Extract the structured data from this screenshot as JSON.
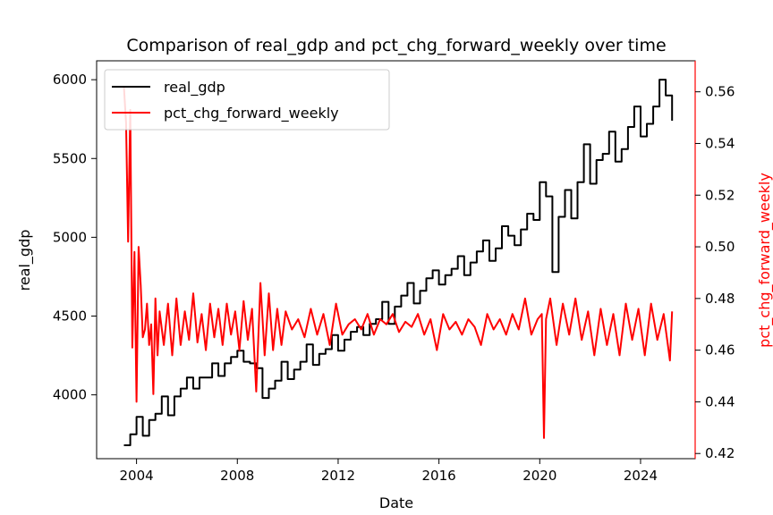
{
  "chart_data": {
    "type": "line",
    "title": "Comparison of real_gdp and pct_chg_forward_weekly over time",
    "xlabel": "Date",
    "ylabel": "real_gdp",
    "ylabel_right": "pct_chg_forward_weekly",
    "x_range": [
      "2002-06",
      "2026-03"
    ],
    "x_ticks": [
      "2004",
      "2008",
      "2012",
      "2016",
      "2020",
      "2024"
    ],
    "y_left_range": [
      3595,
      6120
    ],
    "y_left_ticks": [
      "4000",
      "4500",
      "5000",
      "5500",
      "6000"
    ],
    "y_right_range": [
      0.418,
      0.572
    ],
    "y_right_ticks": [
      "0.42",
      "0.44",
      "0.46",
      "0.48",
      "0.50",
      "0.52",
      "0.54",
      "0.56"
    ],
    "grid": false,
    "legend_position": "top-left",
    "colors": {
      "left": "#000000",
      "right": "#ff0000"
    },
    "series": [
      {
        "name": "real_gdp",
        "axis": "left",
        "color": "#000000",
        "step": true,
        "x": [
          "2003-07",
          "2003-10",
          "2004-01",
          "2004-04",
          "2004-07",
          "2004-10",
          "2005-01",
          "2005-04",
          "2005-07",
          "2005-10",
          "2006-01",
          "2006-04",
          "2006-07",
          "2006-10",
          "2007-01",
          "2007-04",
          "2007-07",
          "2007-10",
          "2008-01",
          "2008-04",
          "2008-07",
          "2008-10",
          "2009-01",
          "2009-04",
          "2009-07",
          "2009-10",
          "2010-01",
          "2010-04",
          "2010-07",
          "2010-10",
          "2011-01",
          "2011-04",
          "2011-07",
          "2011-10",
          "2012-01",
          "2012-04",
          "2012-07",
          "2012-10",
          "2013-01",
          "2013-04",
          "2013-07",
          "2013-10",
          "2014-01",
          "2014-04",
          "2014-07",
          "2014-10",
          "2015-01",
          "2015-04",
          "2015-07",
          "2015-10",
          "2016-01",
          "2016-04",
          "2016-07",
          "2016-10",
          "2017-01",
          "2017-04",
          "2017-07",
          "2017-10",
          "2018-01",
          "2018-04",
          "2018-07",
          "2018-10",
          "2019-01",
          "2019-04",
          "2019-07",
          "2019-10",
          "2020-01",
          "2020-04",
          "2020-07",
          "2020-10",
          "2021-01",
          "2021-04",
          "2021-07",
          "2021-10",
          "2022-01",
          "2022-04",
          "2022-07",
          "2022-10",
          "2023-01",
          "2023-04",
          "2023-07",
          "2023-10",
          "2024-01",
          "2024-04",
          "2024-07",
          "2024-10",
          "2025-01",
          "2025-04"
        ],
        "values": [
          3680,
          3750,
          3860,
          3740,
          3840,
          3880,
          3990,
          3870,
          3990,
          4040,
          4110,
          4040,
          4110,
          4110,
          4200,
          4120,
          4200,
          4240,
          4280,
          4210,
          4200,
          4170,
          3980,
          4040,
          4090,
          4210,
          4100,
          4160,
          4210,
          4320,
          4190,
          4260,
          4290,
          4380,
          4280,
          4350,
          4400,
          4430,
          4380,
          4450,
          4480,
          4590,
          4450,
          4560,
          4630,
          4710,
          4580,
          4660,
          4740,
          4790,
          4700,
          4760,
          4800,
          4880,
          4760,
          4840,
          4910,
          4980,
          4850,
          4930,
          5070,
          5010,
          4950,
          5050,
          5150,
          5110,
          5350,
          5260,
          4780,
          5130,
          5300,
          5120,
          5350,
          5590,
          5340,
          5490,
          5530,
          5670,
          5480,
          5560,
          5700,
          5830,
          5640,
          5720,
          5830,
          6000,
          5900,
          5740
        ]
      },
      {
        "name": "pct_chg_forward_weekly",
        "axis": "right",
        "color": "#ff0000",
        "x": [
          "2003-07",
          "2003-08",
          "2003-09",
          "2003-10",
          "2003-11",
          "2003-12",
          "2004-01",
          "2004-02",
          "2004-03",
          "2004-04",
          "2004-05",
          "2004-06",
          "2004-07",
          "2004-08",
          "2004-09",
          "2004-10",
          "2004-11",
          "2004-12",
          "2005-02",
          "2005-04",
          "2005-06",
          "2005-08",
          "2005-10",
          "2005-12",
          "2006-02",
          "2006-04",
          "2006-06",
          "2006-08",
          "2006-10",
          "2006-12",
          "2007-02",
          "2007-04",
          "2007-06",
          "2007-08",
          "2007-10",
          "2007-12",
          "2008-02",
          "2008-04",
          "2008-06",
          "2008-08",
          "2008-10",
          "2008-12",
          "2009-02",
          "2009-04",
          "2009-06",
          "2009-08",
          "2009-10",
          "2009-12",
          "2010-03",
          "2010-06",
          "2010-09",
          "2010-12",
          "2011-03",
          "2011-06",
          "2011-09",
          "2011-12",
          "2012-03",
          "2012-06",
          "2012-09",
          "2012-12",
          "2013-03",
          "2013-06",
          "2013-09",
          "2013-12",
          "2014-03",
          "2014-06",
          "2014-09",
          "2014-12",
          "2015-03",
          "2015-06",
          "2015-09",
          "2015-12",
          "2016-03",
          "2016-06",
          "2016-09",
          "2016-12",
          "2017-03",
          "2017-06",
          "2017-09",
          "2017-12",
          "2018-03",
          "2018-06",
          "2018-09",
          "2018-12",
          "2019-03",
          "2019-06",
          "2019-09",
          "2019-12",
          "2020-02",
          "2020-03",
          "2020-04",
          "2020-06",
          "2020-09",
          "2020-12",
          "2021-03",
          "2021-06",
          "2021-09",
          "2021-12",
          "2022-03",
          "2022-06",
          "2022-09",
          "2022-12",
          "2023-03",
          "2023-06",
          "2023-09",
          "2023-12",
          "2024-03",
          "2024-06",
          "2024-09",
          "2024-12",
          "2025-02",
          "2025-03",
          "2025-04"
        ],
        "values": [
          0.562,
          0.548,
          0.502,
          0.553,
          0.461,
          0.498,
          0.44,
          0.5,
          0.485,
          0.465,
          0.468,
          0.478,
          0.462,
          0.47,
          0.443,
          0.48,
          0.458,
          0.475,
          0.462,
          0.478,
          0.458,
          0.48,
          0.462,
          0.475,
          0.464,
          0.482,
          0.463,
          0.474,
          0.46,
          0.478,
          0.465,
          0.476,
          0.462,
          0.478,
          0.466,
          0.475,
          0.46,
          0.479,
          0.464,
          0.476,
          0.444,
          0.486,
          0.458,
          0.482,
          0.46,
          0.476,
          0.462,
          0.475,
          0.468,
          0.472,
          0.465,
          0.476,
          0.466,
          0.474,
          0.462,
          0.478,
          0.466,
          0.47,
          0.472,
          0.468,
          0.474,
          0.466,
          0.472,
          0.47,
          0.474,
          0.467,
          0.471,
          0.469,
          0.474,
          0.466,
          0.472,
          0.46,
          0.474,
          0.468,
          0.471,
          0.466,
          0.472,
          0.469,
          0.462,
          0.474,
          0.468,
          0.472,
          0.466,
          0.474,
          0.468,
          0.48,
          0.466,
          0.472,
          0.474,
          0.426,
          0.472,
          0.48,
          0.462,
          0.478,
          0.466,
          0.48,
          0.464,
          0.475,
          0.458,
          0.476,
          0.462,
          0.474,
          0.458,
          0.478,
          0.464,
          0.476,
          0.458,
          0.478,
          0.464,
          0.474,
          0.462,
          0.456,
          0.475
        ]
      }
    ]
  }
}
